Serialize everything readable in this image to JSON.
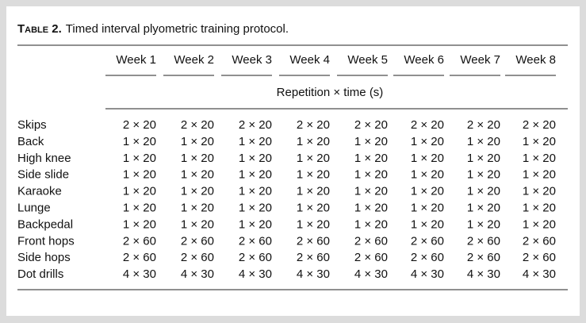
{
  "table": {
    "label": "Table 2.",
    "title": "Timed interval plyometric training protocol.",
    "columns": [
      "Week 1",
      "Week 2",
      "Week 3",
      "Week 4",
      "Week 5",
      "Week 6",
      "Week 7",
      "Week 8"
    ],
    "subheader": "Repetition × time (s)",
    "rows": [
      {
        "label": "Skips",
        "cells": [
          "2 × 20",
          "2 × 20",
          "2 × 20",
          "2 × 20",
          "2 × 20",
          "2 × 20",
          "2 × 20",
          "2 × 20"
        ]
      },
      {
        "label": "Back",
        "cells": [
          "1 × 20",
          "1 × 20",
          "1 × 20",
          "1 × 20",
          "1 × 20",
          "1 × 20",
          "1 × 20",
          "1 × 20"
        ]
      },
      {
        "label": "High knee",
        "cells": [
          "1 × 20",
          "1 × 20",
          "1 × 20",
          "1 × 20",
          "1 × 20",
          "1 × 20",
          "1 × 20",
          "1 × 20"
        ]
      },
      {
        "label": "Side slide",
        "cells": [
          "1 × 20",
          "1 × 20",
          "1 × 20",
          "1 × 20",
          "1 × 20",
          "1 × 20",
          "1 × 20",
          "1 × 20"
        ]
      },
      {
        "label": "Karaoke",
        "cells": [
          "1 × 20",
          "1 × 20",
          "1 × 20",
          "1 × 20",
          "1 × 20",
          "1 × 20",
          "1 × 20",
          "1 × 20"
        ]
      },
      {
        "label": "Lunge",
        "cells": [
          "1 × 20",
          "1 × 20",
          "1 × 20",
          "1 × 20",
          "1 × 20",
          "1 × 20",
          "1 × 20",
          "1 × 20"
        ]
      },
      {
        "label": "Backpedal",
        "cells": [
          "1 × 20",
          "1 × 20",
          "1 × 20",
          "1 × 20",
          "1 × 20",
          "1 × 20",
          "1 × 20",
          "1 × 20"
        ]
      },
      {
        "label": "Front hops",
        "cells": [
          "2 × 60",
          "2 × 60",
          "2 × 60",
          "2 × 60",
          "2 × 60",
          "2 × 60",
          "2 × 60",
          "2 × 60"
        ]
      },
      {
        "label": "Side hops",
        "cells": [
          "2 × 60",
          "2 × 60",
          "2 × 60",
          "2 × 60",
          "2 × 60",
          "2 × 60",
          "2 × 60",
          "2 × 60"
        ]
      },
      {
        "label": "Dot drills",
        "cells": [
          "4 × 30",
          "4 × 30",
          "4 × 30",
          "4 × 30",
          "4 × 30",
          "4 × 30",
          "4 × 30",
          "4 × 30"
        ]
      }
    ]
  }
}
